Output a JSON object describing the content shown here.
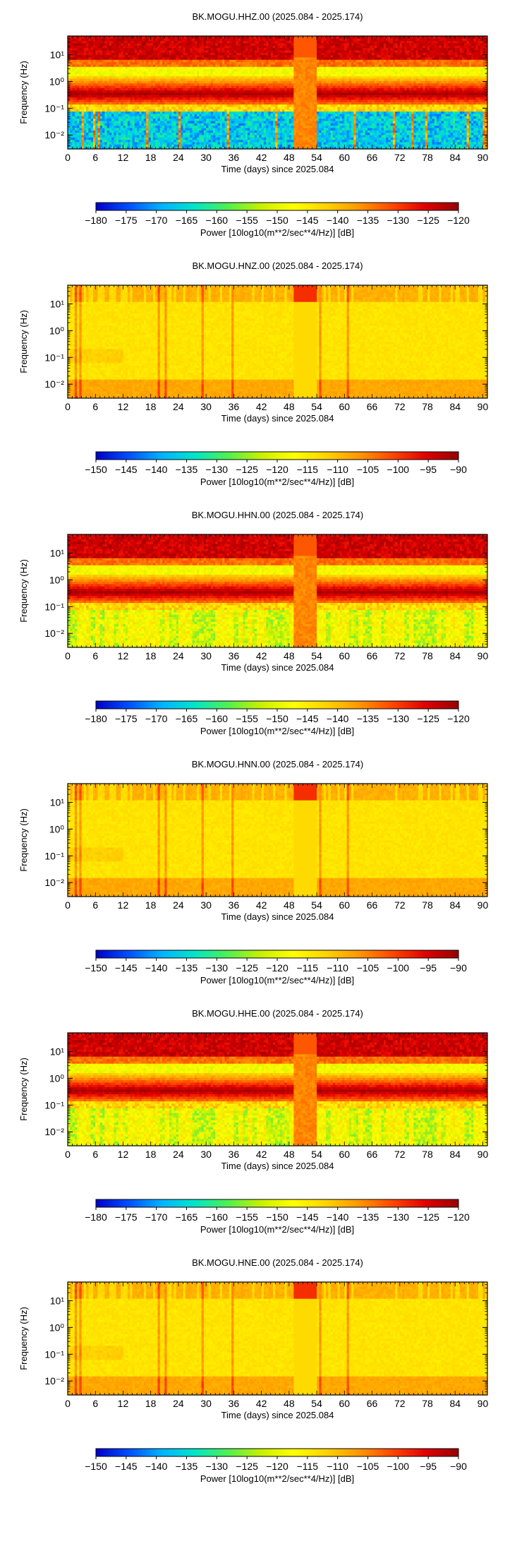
{
  "colorbars": {
    "colorbar_a": {
      "min": -180,
      "max": -120,
      "ticks": [
        -180,
        -175,
        -170,
        -165,
        -160,
        -155,
        -150,
        -145,
        -140,
        -135,
        -130,
        -125,
        -120
      ]
    },
    "colorbar_b": {
      "min": -150,
      "max": -90,
      "ticks": [
        -150,
        -145,
        -140,
        -135,
        -130,
        -125,
        -120,
        -115,
        -110,
        -105,
        -100,
        -95,
        -90
      ]
    }
  },
  "colormap_stops": [
    "#0000c8",
    "#0050ff",
    "#00b4ff",
    "#00e6c8",
    "#50f050",
    "#c8f000",
    "#ffff00",
    "#ffd200",
    "#ff9600",
    "#ff4600",
    "#e10000",
    "#960000"
  ],
  "chart_data": [
    {
      "type": "heatmap",
      "title": "BK.MOGU.HHZ.00 (2025.084 - 2025.174)",
      "xlabel": "Time (days) since 2025.084",
      "ylabel": "Frequency (Hz)",
      "colorbar_label": "Power [10log10(m**2/sec**4/Hz)] [dB]",
      "colorbar": "colorbar_a",
      "x_ticks": [
        0,
        6,
        12,
        18,
        24,
        30,
        36,
        42,
        48,
        54,
        60,
        66,
        72,
        78,
        84,
        90
      ],
      "xlim": [
        0,
        91
      ],
      "y_scale": "log",
      "y_ticks": [
        "10⁻²",
        "10⁻¹",
        "10⁰",
        "10¹"
      ],
      "y_tick_values": [
        0.01,
        0.1,
        1,
        10
      ],
      "ylim": [
        0.003,
        50
      ],
      "style": "broadband",
      "gap_days": [
        49,
        54
      ]
    },
    {
      "type": "heatmap",
      "title": "BK.MOGU.HNZ.00 (2025.084 - 2025.174)",
      "xlabel": "Time (days) since 2025.084",
      "ylabel": "Frequency (Hz)",
      "colorbar_label": "Power [10log10(m**2/sec**4/Hz)] [dB]",
      "colorbar": "colorbar_b",
      "x_ticks": [
        0,
        6,
        12,
        18,
        24,
        30,
        36,
        42,
        48,
        54,
        60,
        66,
        72,
        78,
        84,
        90
      ],
      "xlim": [
        0,
        91
      ],
      "y_scale": "log",
      "y_ticks": [
        "10⁻²",
        "10⁻¹",
        "10⁰",
        "10¹"
      ],
      "y_tick_values": [
        0.01,
        0.1,
        1,
        10
      ],
      "ylim": [
        0.003,
        50
      ],
      "style": "strongmotion",
      "gap_days": [
        49,
        54
      ]
    },
    {
      "type": "heatmap",
      "title": "BK.MOGU.HHN.00 (2025.084 - 2025.174)",
      "xlabel": "Time (days) since 2025.084",
      "ylabel": "Frequency (Hz)",
      "colorbar_label": "Power [10log10(m**2/sec**4/Hz)] [dB]",
      "colorbar": "colorbar_a",
      "x_ticks": [
        0,
        6,
        12,
        18,
        24,
        30,
        36,
        42,
        48,
        54,
        60,
        66,
        72,
        78,
        84,
        90
      ],
      "xlim": [
        0,
        91
      ],
      "y_scale": "log",
      "y_ticks": [
        "10⁻²",
        "10⁻¹",
        "10⁰",
        "10¹"
      ],
      "y_tick_values": [
        0.01,
        0.1,
        1,
        10
      ],
      "ylim": [
        0.003,
        50
      ],
      "style": "broadband-horizontal",
      "gap_days": [
        49,
        54
      ]
    },
    {
      "type": "heatmap",
      "title": "BK.MOGU.HNN.00 (2025.084 - 2025.174)",
      "xlabel": "Time (days) since 2025.084",
      "ylabel": "Frequency (Hz)",
      "colorbar_label": "Power [10log10(m**2/sec**4/Hz)] [dB]",
      "colorbar": "colorbar_b",
      "x_ticks": [
        0,
        6,
        12,
        18,
        24,
        30,
        36,
        42,
        48,
        54,
        60,
        66,
        72,
        78,
        84,
        90
      ],
      "xlim": [
        0,
        91
      ],
      "y_scale": "log",
      "y_ticks": [
        "10⁻²",
        "10⁻¹",
        "10⁰",
        "10¹"
      ],
      "y_tick_values": [
        0.01,
        0.1,
        1,
        10
      ],
      "ylim": [
        0.003,
        50
      ],
      "style": "strongmotion",
      "gap_days": [
        49,
        54
      ]
    },
    {
      "type": "heatmap",
      "title": "BK.MOGU.HHE.00 (2025.084 - 2025.174)",
      "xlabel": "Time (days) since 2025.084",
      "ylabel": "Frequency (Hz)",
      "colorbar_label": "Power [10log10(m**2/sec**4/Hz)] [dB]",
      "colorbar": "colorbar_a",
      "x_ticks": [
        0,
        6,
        12,
        18,
        24,
        30,
        36,
        42,
        48,
        54,
        60,
        66,
        72,
        78,
        84,
        90
      ],
      "xlim": [
        0,
        91
      ],
      "y_scale": "log",
      "y_ticks": [
        "10⁻²",
        "10⁻¹",
        "10⁰",
        "10¹"
      ],
      "y_tick_values": [
        0.01,
        0.1,
        1,
        10
      ],
      "ylim": [
        0.003,
        50
      ],
      "style": "broadband-horizontal",
      "gap_days": [
        49,
        54
      ]
    },
    {
      "type": "heatmap",
      "title": "BK.MOGU.HNE.00 (2025.084 - 2025.174)",
      "xlabel": "Time (days) since 2025.084",
      "ylabel": "Frequency (Hz)",
      "colorbar_label": "Power [10log10(m**2/sec**4/Hz)] [dB]",
      "colorbar": "colorbar_b",
      "x_ticks": [
        0,
        6,
        12,
        18,
        24,
        30,
        36,
        42,
        48,
        54,
        60,
        66,
        72,
        78,
        84,
        90
      ],
      "xlim": [
        0,
        91
      ],
      "y_scale": "log",
      "y_ticks": [
        "10⁻²",
        "10⁻¹",
        "10⁰",
        "10¹"
      ],
      "y_tick_values": [
        0.01,
        0.1,
        1,
        10
      ],
      "ylim": [
        0.003,
        50
      ],
      "style": "strongmotion",
      "gap_days": [
        49,
        54
      ]
    }
  ]
}
